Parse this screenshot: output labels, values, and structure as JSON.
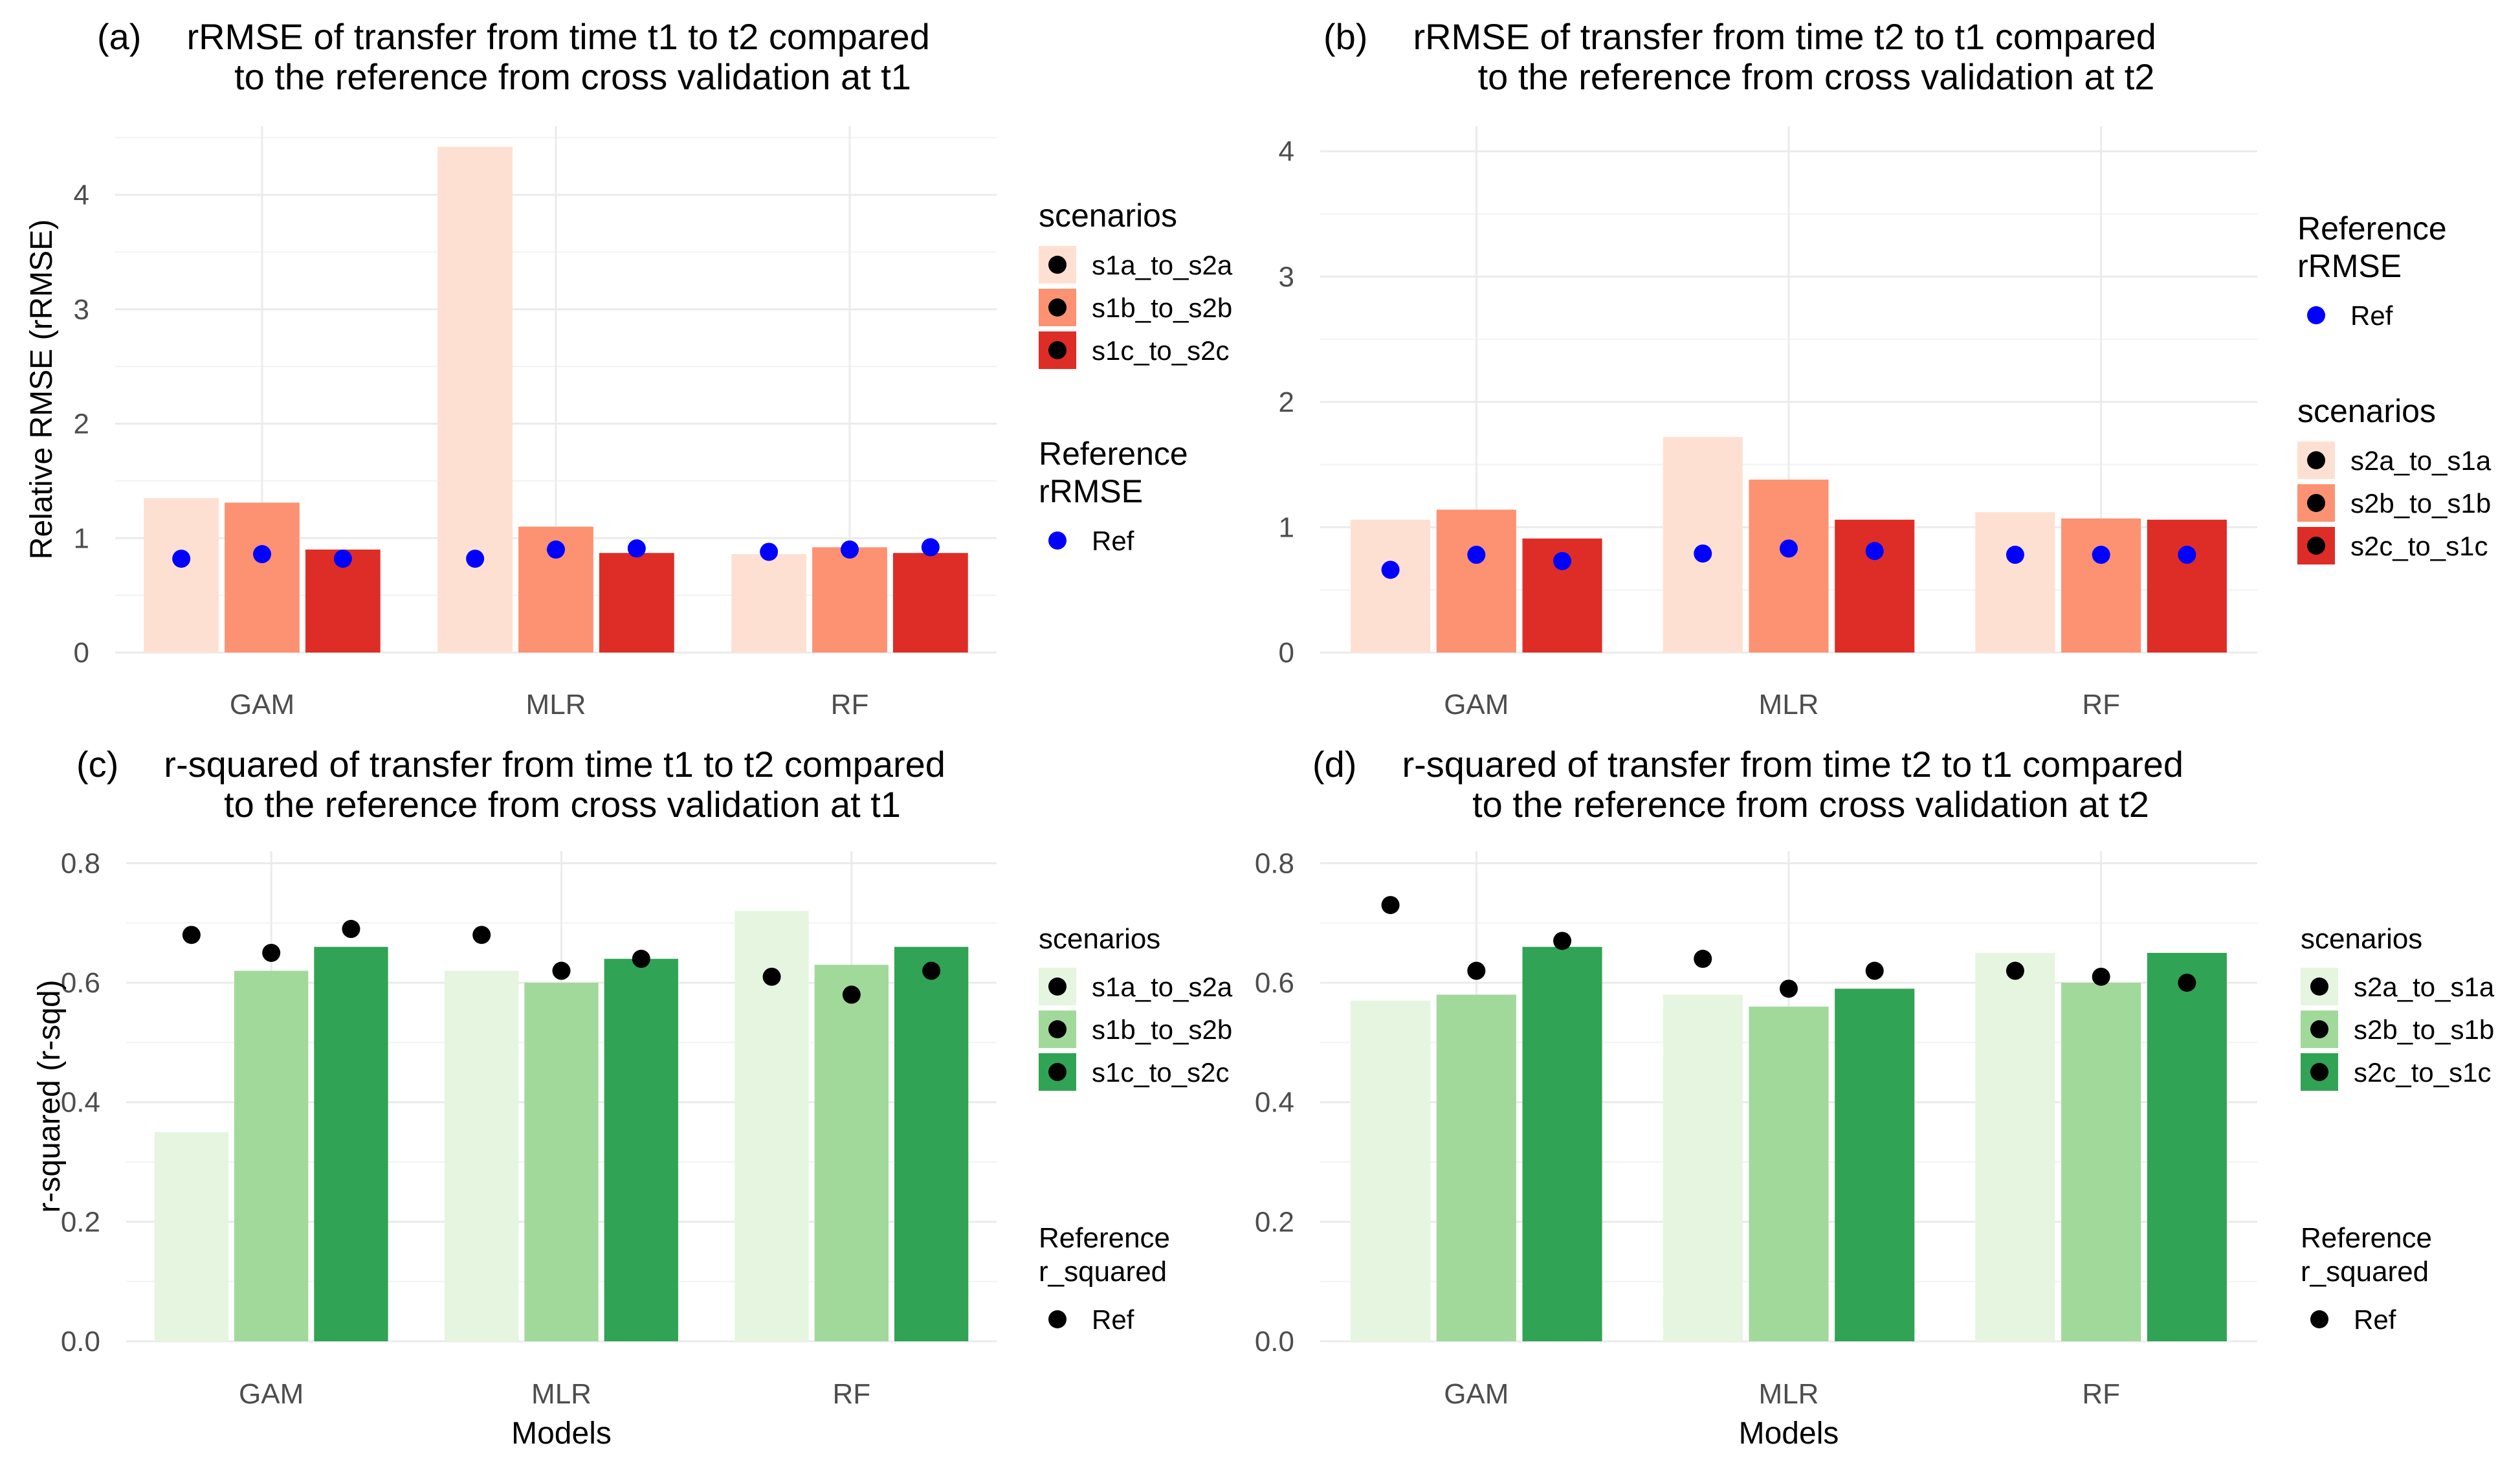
{
  "chart_data": [
    {
      "id": "a",
      "type": "bar",
      "panel_label": "(a)",
      "title_line1": "rRMSE of transfer from time t1  to t2 compared",
      "title_line2": "to the reference from cross validation at  t1",
      "ylabel": "Relative RMSE (rRMSE)",
      "xlabel": "",
      "ylim": [
        0,
        4.6
      ],
      "yticks": [
        0,
        1,
        2,
        3,
        4
      ],
      "ytick_labels": [
        "0",
        "1",
        "2",
        "3",
        "4"
      ],
      "categories": [
        "GAM",
        "MLR",
        "RF"
      ],
      "series": [
        {
          "name": "s1a_to_s2a",
          "color": "#fee0d2",
          "values": [
            1.35,
            4.42,
            0.86
          ]
        },
        {
          "name": "s1b_to_s2b",
          "color": "#fc9272",
          "values": [
            1.31,
            1.1,
            0.92
          ]
        },
        {
          "name": "s1c_to_s2c",
          "color": "#de2d26",
          "values": [
            0.9,
            0.87,
            0.87
          ]
        }
      ],
      "reference": {
        "name": "Ref",
        "color": "#0000ff",
        "values": [
          [
            0.82,
            0.86,
            0.82
          ],
          [
            0.82,
            0.9,
            0.91
          ],
          [
            0.88,
            0.9,
            0.92
          ]
        ]
      },
      "legend_order": "scenarios-first",
      "legend_scenarios_title": "scenarios",
      "legend_ref_title_line1": "Reference",
      "legend_ref_title_line2": "rRMSE",
      "legend_ref_label": "Ref",
      "legend_key_dot_color": "#000000"
    },
    {
      "id": "b",
      "type": "bar",
      "panel_label": "(b)",
      "title_line1": "rRMSE of transfer from time t2  to t1  compared",
      "title_line2": "to the reference from cross validation at t2",
      "ylabel": "",
      "xlabel": "",
      "ylim": [
        0,
        4.2
      ],
      "yticks": [
        0,
        1,
        2,
        3,
        4
      ],
      "ytick_labels": [
        "0",
        "1",
        "2",
        "3",
        "4"
      ],
      "categories": [
        "GAM",
        "MLR",
        "RF"
      ],
      "series": [
        {
          "name": "s2a_to_s1a",
          "color": "#fee0d2",
          "values": [
            1.06,
            1.72,
            1.12
          ]
        },
        {
          "name": "s2b_to_s1b",
          "color": "#fc9272",
          "values": [
            1.14,
            1.38,
            1.07
          ]
        },
        {
          "name": "s2c_to_s1c",
          "color": "#de2d26",
          "values": [
            0.91,
            1.06,
            1.06
          ]
        }
      ],
      "reference": {
        "name": "Ref",
        "color": "#0000ff",
        "values": [
          [
            0.66,
            0.78,
            0.73
          ],
          [
            0.79,
            0.83,
            0.81
          ],
          [
            0.78,
            0.78,
            0.78
          ]
        ]
      },
      "legend_order": "ref-first",
      "legend_scenarios_title": "scenarios",
      "legend_ref_title_line1": "Reference",
      "legend_ref_title_line2": "rRMSE",
      "legend_ref_label": "Ref",
      "legend_key_dot_color": "#000000"
    },
    {
      "id": "c",
      "type": "bar",
      "panel_label": "(c)",
      "title_line1": "r-squared of transfer from time t1  to t2  compared",
      "title_line2": "to the reference from cross validation at t1",
      "ylabel": "r-squared (r-sqd)",
      "xlabel": "Models",
      "ylim": [
        0,
        0.82
      ],
      "yticks": [
        0,
        0.2,
        0.4,
        0.6,
        0.8
      ],
      "ytick_labels": [
        "0.0",
        "0.2",
        "0.4",
        "0.6",
        "0.8"
      ],
      "categories": [
        "GAM",
        "MLR",
        "RF"
      ],
      "series": [
        {
          "name": "s1a_to_s2a",
          "color": "#e5f5e0",
          "values": [
            0.35,
            0.62,
            0.72
          ]
        },
        {
          "name": "s1b_to_s2b",
          "color": "#a1d99b",
          "values": [
            0.62,
            0.6,
            0.63
          ]
        },
        {
          "name": "s1c_to_s2c",
          "color": "#31a354",
          "values": [
            0.66,
            0.64,
            0.66
          ]
        }
      ],
      "reference": {
        "name": "Ref",
        "color": "#000000",
        "values": [
          [
            0.68,
            0.65,
            0.69
          ],
          [
            0.68,
            0.62,
            0.64
          ],
          [
            0.61,
            0.58,
            0.62
          ]
        ]
      },
      "legend_order": "scenarios-first",
      "legend_scenarios_title": "scenarios",
      "legend_ref_title_line1": "Reference",
      "legend_ref_title_line2": "r_squared",
      "legend_ref_label": "Ref",
      "legend_key_dot_color": "#000000"
    },
    {
      "id": "d",
      "type": "bar",
      "panel_label": "(d)",
      "title_line1": "r-squared of transfer from time t2  to t1  compared",
      "title_line2": "to the reference from cross validation at t2",
      "ylabel": "",
      "xlabel": "Models",
      "ylim": [
        0,
        0.82
      ],
      "yticks": [
        0,
        0.2,
        0.4,
        0.6,
        0.8
      ],
      "ytick_labels": [
        "0.0",
        "0.2",
        "0.4",
        "0.6",
        "0.8"
      ],
      "categories": [
        "GAM",
        "MLR",
        "RF"
      ],
      "series": [
        {
          "name": "s2a_to_s1a",
          "color": "#e5f5e0",
          "values": [
            0.57,
            0.58,
            0.65
          ]
        },
        {
          "name": "s2b_to_s1b",
          "color": "#a1d99b",
          "values": [
            0.58,
            0.56,
            0.6
          ]
        },
        {
          "name": "s2c_to_s1c",
          "color": "#31a354",
          "values": [
            0.66,
            0.59,
            0.65
          ]
        }
      ],
      "reference": {
        "name": "Ref",
        "color": "#000000",
        "values": [
          [
            0.73,
            0.62,
            0.67
          ],
          [
            0.64,
            0.59,
            0.62
          ],
          [
            0.62,
            0.61,
            0.6
          ]
        ]
      },
      "legend_order": "scenarios-first",
      "legend_scenarios_title": "scenarios",
      "legend_ref_title_line1": "Reference",
      "legend_ref_title_line2": "r_squared",
      "legend_ref_label": "Ref",
      "legend_key_dot_color": "#000000"
    }
  ]
}
